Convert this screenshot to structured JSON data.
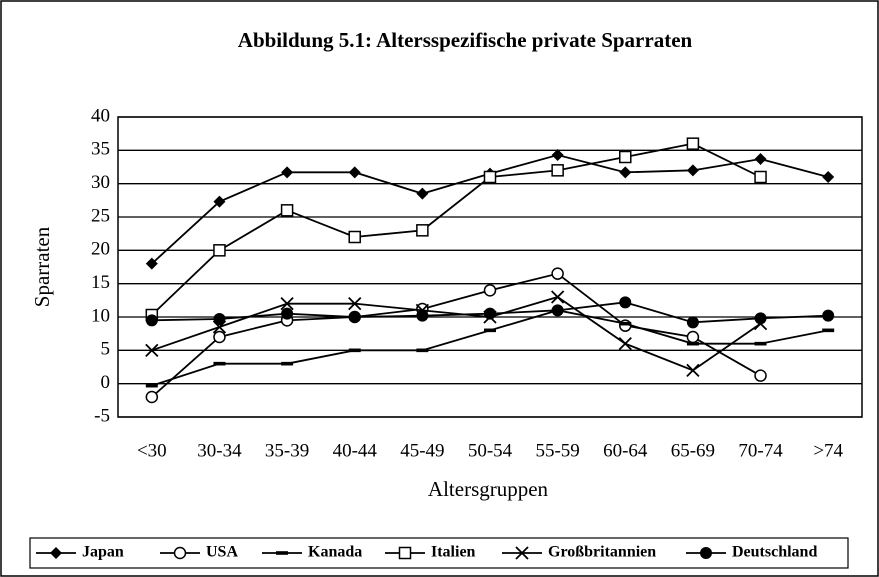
{
  "chart_data": {
    "type": "line",
    "title": "Abbildung 5.1: Altersspezifische private Sparraten",
    "x_label": "Altersgruppen",
    "y_label": "Sparraten",
    "categories": [
      "<30",
      "30-34",
      "35-39",
      "40-44",
      "45-49",
      "50-54",
      "55-59",
      "60-64",
      "65-69",
      "70-74",
      ">74"
    ],
    "ylim": [
      -5,
      40
    ],
    "yticks": [
      -5,
      0,
      5,
      10,
      15,
      20,
      25,
      30,
      35,
      40
    ],
    "grid": true,
    "legend": "bottom",
    "series": [
      {
        "name": "Japan",
        "color": "#000000",
        "marker": "diamond",
        "values": [
          18,
          27.3,
          31.7,
          31.7,
          28.5,
          31.5,
          34.3,
          31.7,
          32,
          33.7,
          31
        ]
      },
      {
        "name": "USA",
        "color": "#000000",
        "marker": "circle-open",
        "values": [
          -2,
          7,
          9.5,
          10,
          11.2,
          14,
          16.5,
          8.7,
          7,
          1.2,
          null
        ]
      },
      {
        "name": "Kanada",
        "color": "#000000",
        "marker": "dash",
        "values": [
          -0.3,
          3,
          3,
          5,
          5,
          8,
          11,
          9,
          6,
          6,
          8
        ]
      },
      {
        "name": "Italien",
        "color": "#000000",
        "marker": "square-open",
        "values": [
          10.3,
          20,
          26,
          22,
          23,
          31,
          32,
          34,
          36,
          31,
          null
        ]
      },
      {
        "name": "Großbritannien",
        "color": "#000000",
        "marker": "x",
        "values": [
          5,
          8.5,
          12,
          12,
          11,
          10,
          13,
          6,
          2,
          9,
          null
        ]
      },
      {
        "name": "Deutschland",
        "color": "#000000",
        "marker": "circle",
        "values": [
          9.5,
          9.7,
          10.5,
          10,
          10.2,
          10.5,
          11,
          12.2,
          9.2,
          9.8,
          10.2
        ]
      }
    ]
  }
}
